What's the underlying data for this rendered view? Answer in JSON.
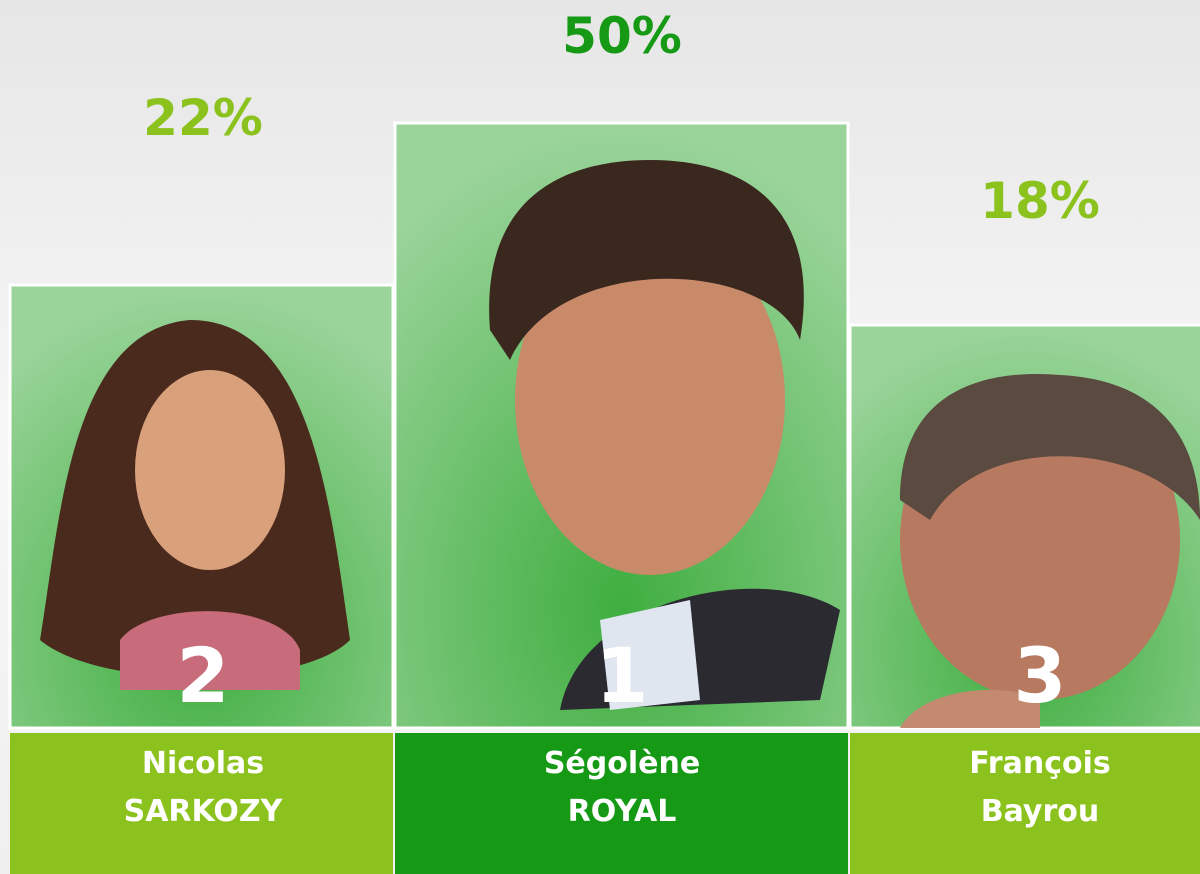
{
  "podium": [
    {
      "percent": "22%",
      "rank": "2",
      "name_lines": [
        "Nicolas",
        "SARKOZY"
      ]
    },
    {
      "percent": "50%",
      "rank": "1",
      "name_lines": [
        "Ségolène",
        "ROYAL"
      ]
    },
    {
      "percent": "18%",
      "rank": "3",
      "name_lines": [
        "François",
        "Bayrou"
      ]
    }
  ]
}
